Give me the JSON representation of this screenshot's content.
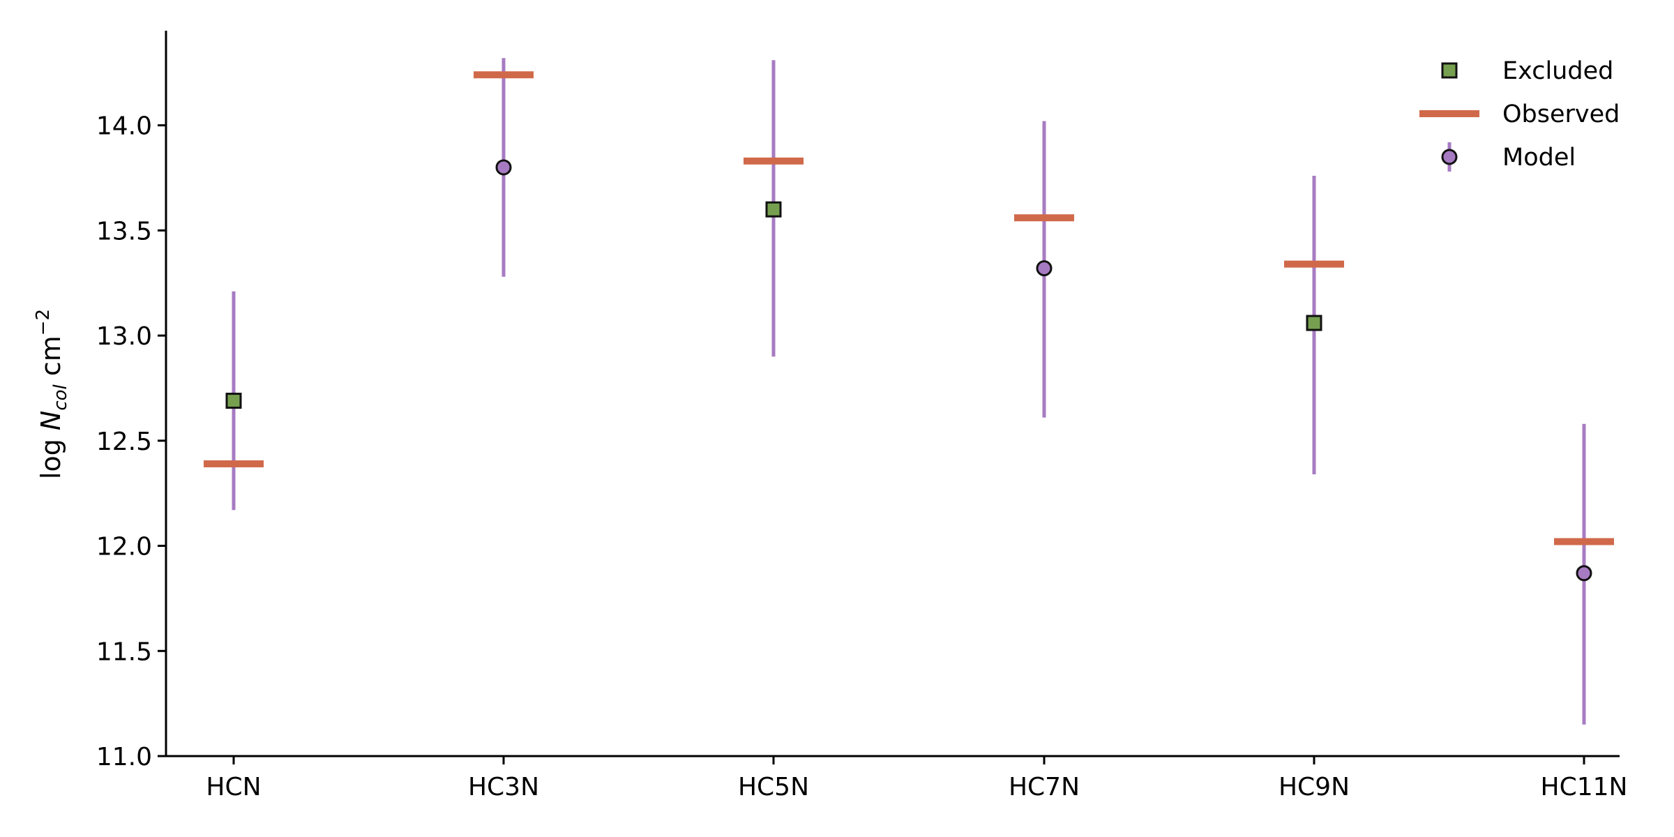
{
  "chart_data": {
    "type": "scatter",
    "categories": [
      "HCN",
      "HC3N",
      "HC5N",
      "HC7N",
      "HC9N",
      "HC11N"
    ],
    "ylabel": {
      "prefix": "log ",
      "symbol": "N",
      "subscript": "col",
      "unit": " cm",
      "exponent": "−2"
    },
    "ylim": [
      11.0,
      14.45
    ],
    "yticks": [
      "11.0",
      "11.5",
      "12.0",
      "12.5",
      "13.0",
      "13.5",
      "14.0"
    ],
    "grid": false,
    "legend_position": "top-right",
    "colors": {
      "excluded": "#76a04f",
      "observed": "#d0694a",
      "model": "#a77bc2",
      "errorbar": "#a77bc2",
      "marker_edge": "#111111",
      "axis": "#000000"
    },
    "observed": [
      12.39,
      14.24,
      13.83,
      13.56,
      13.34,
      12.02
    ],
    "model": [
      {
        "category": "HCN",
        "value": null,
        "err_low": 12.17,
        "err_high": 13.21
      },
      {
        "category": "HC3N",
        "value": 13.8,
        "err_low": 13.28,
        "err_high": 14.32
      },
      {
        "category": "HC5N",
        "value": null,
        "err_low": 12.9,
        "err_high": 14.31
      },
      {
        "category": "HC7N",
        "value": 13.32,
        "err_low": 12.61,
        "err_high": 14.02
      },
      {
        "category": "HC9N",
        "value": null,
        "err_low": 12.34,
        "err_high": 13.76
      },
      {
        "category": "HC11N",
        "value": 11.87,
        "err_low": 11.15,
        "err_high": 12.58
      }
    ],
    "excluded": [
      {
        "category": "HCN",
        "value": 12.69
      },
      {
        "category": "HC5N",
        "value": 13.6
      },
      {
        "category": "HC9N",
        "value": 13.06
      }
    ],
    "legend": [
      {
        "key": "excluded",
        "label": "Excluded"
      },
      {
        "key": "observed",
        "label": "Observed"
      },
      {
        "key": "model",
        "label": "Model"
      }
    ]
  }
}
